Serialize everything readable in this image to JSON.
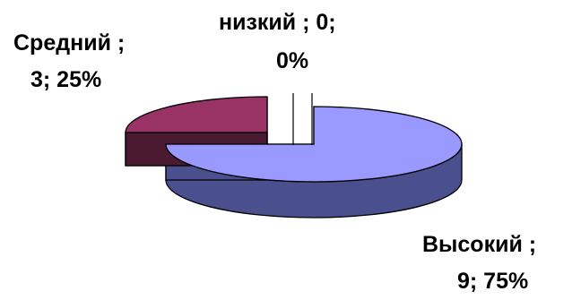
{
  "chart_data": {
    "type": "pie",
    "three_d": true,
    "categories": [
      "Высокий",
      "Средний",
      "низкий"
    ],
    "values": [
      9,
      3,
      0
    ],
    "percents": [
      "75%",
      "25%",
      "0%"
    ],
    "colors": {
      "Высокий": {
        "top": "#9999ff",
        "side": "#4a4f8e"
      },
      "Средний": {
        "top": "#993366",
        "side": "#4a1a33"
      },
      "низкий": {
        "top": "#ffffff",
        "side": "#ffffff"
      }
    },
    "labels": {
      "high": [
        "Высокий ;",
        "9; 75%"
      ],
      "mid": [
        "Средний ;",
        "3; 25%"
      ],
      "low": [
        "низкий ; 0;",
        "0%"
      ]
    }
  }
}
